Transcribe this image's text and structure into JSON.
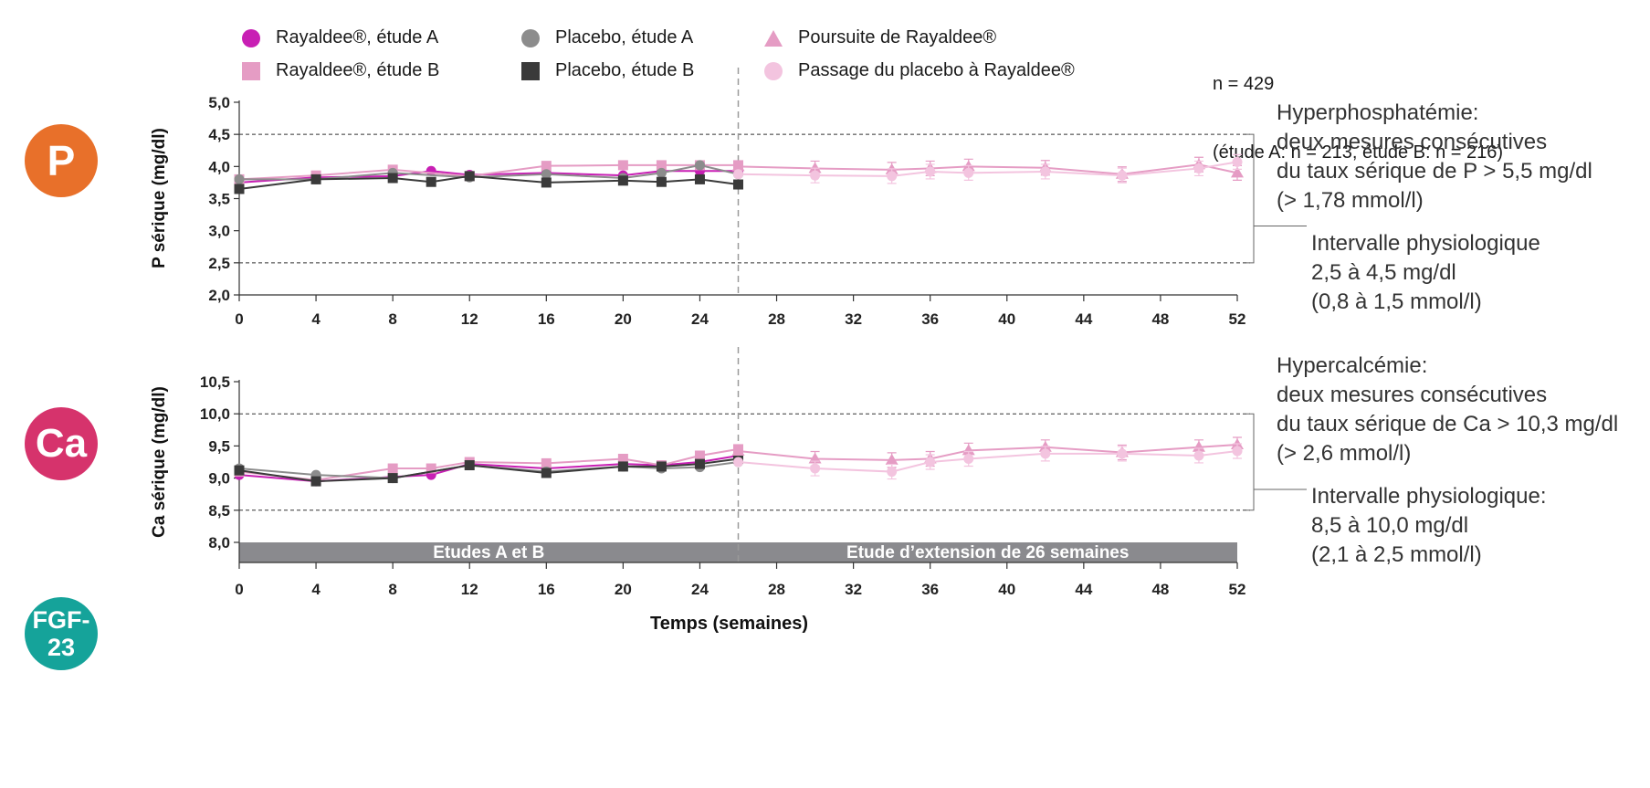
{
  "badges": {
    "p": {
      "label": "P",
      "color": "#e8702a"
    },
    "ca": {
      "label": "Ca",
      "color": "#d6336c"
    },
    "fgf": {
      "label": "FGF-\n23",
      "color": "#15a39a"
    }
  },
  "legend": {
    "items": [
      {
        "label": "Rayaldee®, étude A",
        "marker": "circle",
        "color": "#c81fb4"
      },
      {
        "label": "Rayaldee®, étude B",
        "marker": "square",
        "color": "#e59cc4"
      },
      {
        "label": "Placebo, étude A",
        "marker": "circle",
        "color": "#8c8c8c"
      },
      {
        "label": "Placebo, étude B",
        "marker": "square",
        "color": "#3a3a3a"
      },
      {
        "label": "Poursuite de Rayaldee®",
        "marker": "triangle",
        "color": "#e59cc4"
      },
      {
        "label": "Passage du placebo à Rayaldee®",
        "marker": "circle",
        "color": "#f3c4df"
      }
    ]
  },
  "note": {
    "n": "n = 429",
    "detail": "(étude A: n = 213, étude B: n = 216)"
  },
  "annotations": {
    "p_hyper": "Hyperphosphatémie:\ndeux mesures consécutives\ndu taux sérique de P > 5,5 mg/dl\n(> 1,78 mmol/l)",
    "p_range": "Intervalle physiologique\n2,5 à 4,5 mg/dl\n(0,8 à 1,5 mmol/l)",
    "ca_hyper": "Hypercalcémie:\ndeux mesures consécutives\ndu taux sérique de Ca > 10,3 mg/dl\n(> 2,6 mmol/l)",
    "ca_range": "Intervalle physiologique:\n8,5 à 10,0 mg/dl\n(2,1 à 2,5 mmol/l)"
  },
  "chart_data": [
    {
      "type": "line",
      "ylabel": "P sérique (mg/dl)",
      "xlabel": "",
      "xlim": [
        0,
        52
      ],
      "xticks": [
        0,
        4,
        8,
        12,
        16,
        20,
        24,
        28,
        32,
        36,
        40,
        44,
        48,
        52
      ],
      "ylim": [
        2.0,
        5.0
      ],
      "yticks": [
        "2,0",
        "2,5",
        "3,0",
        "3,5",
        "4,0",
        "4,5",
        "5,0"
      ],
      "reference_lines": [
        2.5,
        4.5
      ],
      "vertical_divider": 26,
      "series": [
        {
          "name": "Rayaldee®, étude A",
          "marker": "circle",
          "color": "#c81fb4",
          "x": [
            0,
            4,
            8,
            10,
            12,
            16,
            20,
            22,
            24,
            26
          ],
          "y": [
            3.75,
            3.83,
            3.85,
            3.93,
            3.87,
            3.9,
            3.86,
            3.93,
            3.93,
            3.93
          ]
        },
        {
          "name": "Rayaldee®, étude B",
          "marker": "square",
          "color": "#e59cc4",
          "x": [
            0,
            4,
            8,
            12,
            16,
            20,
            22,
            24,
            26
          ],
          "y": [
            3.8,
            3.86,
            3.95,
            3.85,
            4.01,
            4.02,
            4.02,
            4.02,
            4.02
          ]
        },
        {
          "name": "Placebo, étude A",
          "marker": "circle",
          "color": "#8c8c8c",
          "x": [
            0,
            4,
            8,
            12,
            16,
            20,
            22,
            24,
            26
          ],
          "y": [
            3.8,
            3.8,
            3.9,
            3.83,
            3.88,
            3.82,
            3.9,
            4.02,
            3.88
          ]
        },
        {
          "name": "Placebo, étude B",
          "marker": "square",
          "color": "#3a3a3a",
          "x": [
            0,
            4,
            8,
            10,
            12,
            16,
            20,
            22,
            24,
            26
          ],
          "y": [
            3.65,
            3.8,
            3.82,
            3.76,
            3.85,
            3.75,
            3.78,
            3.76,
            3.8,
            3.72
          ]
        },
        {
          "name": "Poursuite de Rayaldee®",
          "marker": "triangle",
          "color": "#e59cc4",
          "x": [
            26,
            30,
            34,
            36,
            38,
            42,
            46,
            50,
            52
          ],
          "y": [
            4.0,
            3.97,
            3.95,
            3.97,
            4.0,
            3.98,
            3.88,
            4.03,
            3.9
          ]
        },
        {
          "name": "Passage du placebo à Rayaldee®",
          "marker": "circle",
          "color": "#f3c4df",
          "x": [
            26,
            30,
            34,
            36,
            38,
            42,
            46,
            50,
            52
          ],
          "y": [
            3.88,
            3.86,
            3.85,
            3.92,
            3.9,
            3.92,
            3.86,
            3.97,
            4.07
          ]
        }
      ]
    },
    {
      "type": "line",
      "ylabel": "Ca sérique (mg/dl)",
      "xlabel": "Temps (semaines)",
      "xlim": [
        0,
        52
      ],
      "xticks": [
        0,
        4,
        8,
        12,
        16,
        20,
        24,
        28,
        32,
        36,
        40,
        44,
        48,
        52
      ],
      "ylim": [
        8.0,
        10.5
      ],
      "yticks": [
        "8,0",
        "8,5",
        "9,0",
        "9,5",
        "10,0",
        "10,5"
      ],
      "reference_lines": [
        8.5,
        10.0
      ],
      "vertical_divider": 26,
      "period_labels": [
        "Etudes A et B",
        "Etude d’extension de 26 semaines"
      ],
      "series": [
        {
          "name": "Rayaldee®, étude A",
          "marker": "circle",
          "color": "#c81fb4",
          "x": [
            0,
            4,
            8,
            10,
            12,
            16,
            20,
            22,
            24,
            26
          ],
          "y": [
            9.05,
            8.95,
            9.02,
            9.05,
            9.22,
            9.15,
            9.22,
            9.2,
            9.25,
            9.35
          ]
        },
        {
          "name": "Rayaldee®, étude B",
          "marker": "square",
          "color": "#e59cc4",
          "x": [
            0,
            4,
            8,
            10,
            12,
            16,
            20,
            22,
            24,
            26
          ],
          "y": [
            9.1,
            8.97,
            9.15,
            9.15,
            9.25,
            9.23,
            9.3,
            9.2,
            9.35,
            9.45
          ]
        },
        {
          "name": "Placebo, étude A",
          "marker": "circle",
          "color": "#8c8c8c",
          "x": [
            0,
            4,
            8,
            12,
            16,
            20,
            22,
            24,
            26
          ],
          "y": [
            9.15,
            9.05,
            9.0,
            9.2,
            9.1,
            9.18,
            9.15,
            9.17,
            9.25
          ]
        },
        {
          "name": "Placebo, étude B",
          "marker": "square",
          "color": "#3a3a3a",
          "x": [
            0,
            4,
            8,
            12,
            16,
            20,
            22,
            24,
            26
          ],
          "y": [
            9.12,
            8.95,
            9.0,
            9.2,
            9.08,
            9.18,
            9.18,
            9.22,
            9.3
          ]
        },
        {
          "name": "Poursuite de Rayaldee®",
          "marker": "triangle",
          "color": "#e59cc4",
          "x": [
            26,
            30,
            34,
            36,
            38,
            42,
            46,
            50,
            52
          ],
          "y": [
            9.42,
            9.3,
            9.28,
            9.3,
            9.43,
            9.48,
            9.4,
            9.48,
            9.52
          ]
        },
        {
          "name": "Passage du placebo à Rayaldee®",
          "marker": "circle",
          "color": "#f3c4df",
          "x": [
            26,
            30,
            34,
            36,
            38,
            42,
            46,
            50,
            52
          ],
          "y": [
            9.25,
            9.15,
            9.1,
            9.25,
            9.3,
            9.38,
            9.38,
            9.35,
            9.42
          ]
        }
      ]
    }
  ]
}
